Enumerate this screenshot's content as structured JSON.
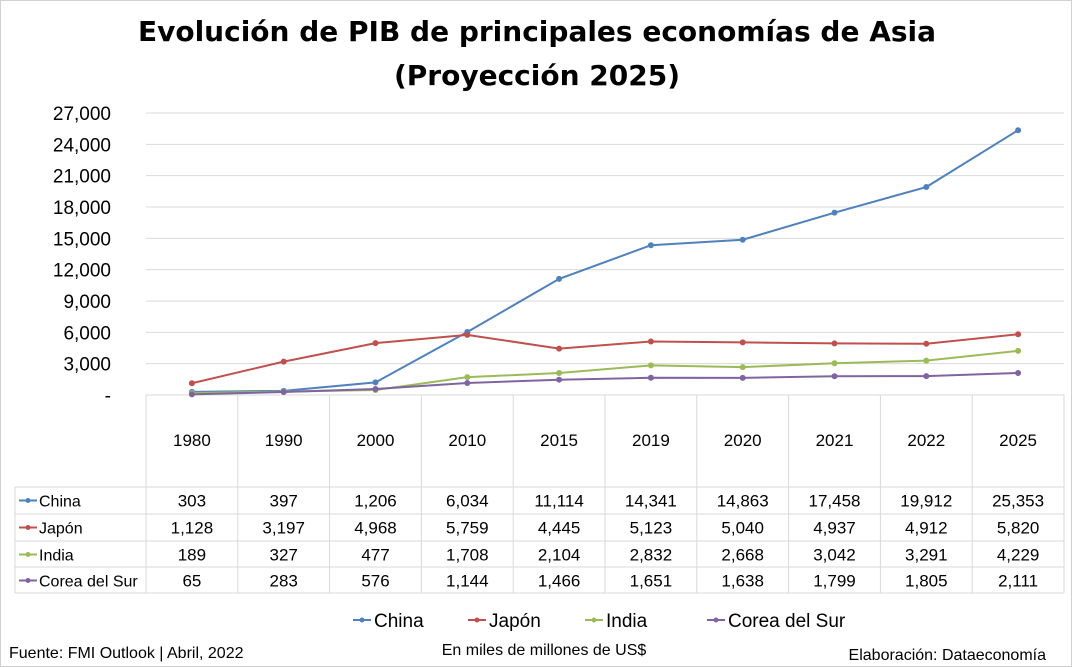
{
  "chart_data": {
    "type": "line",
    "title": "Evolución de PIB de principales economías de Asia",
    "subtitle": "(Proyección 2025)",
    "categories": [
      "1980",
      "1990",
      "2000",
      "2010",
      "2015",
      "2019",
      "2020",
      "2021",
      "2022",
      "2025"
    ],
    "ylim": [
      0,
      27000
    ],
    "yticks": [
      "-",
      "3,000",
      "6,000",
      "9,000",
      "12,000",
      "15,000",
      "18,000",
      "21,000",
      "24,000",
      "27,000"
    ],
    "grid": true,
    "legend_position": "bottom",
    "series": [
      {
        "name": "China",
        "color": "#4F81BD",
        "values": [
          303,
          397,
          1206,
          6034,
          11114,
          14341,
          14863,
          17458,
          19912,
          25353
        ],
        "labels": [
          "303",
          "397",
          "1,206",
          "6,034",
          "11,114",
          "14,341",
          "14,863",
          "17,458",
          "19,912",
          "25,353"
        ]
      },
      {
        "name": "Japón",
        "color": "#C0504D",
        "values": [
          1128,
          3197,
          4968,
          5759,
          4445,
          5123,
          5040,
          4937,
          4912,
          5820
        ],
        "labels": [
          "1,128",
          "3,197",
          "4,968",
          "5,759",
          "4,445",
          "5,123",
          "5,040",
          "4,937",
          "4,912",
          "5,820"
        ]
      },
      {
        "name": "India",
        "color": "#9BBB59",
        "values": [
          189,
          327,
          477,
          1708,
          2104,
          2832,
          2668,
          3042,
          3291,
          4229
        ],
        "labels": [
          "189",
          "327",
          "477",
          "1,708",
          "2,104",
          "2,832",
          "2,668",
          "3,042",
          "3,291",
          "4,229"
        ]
      },
      {
        "name": "Corea del Sur",
        "color": "#8064A2",
        "values": [
          65,
          283,
          576,
          1144,
          1466,
          1651,
          1638,
          1799,
          1805,
          2111
        ],
        "labels": [
          "65",
          "283",
          "576",
          "1,144",
          "1,466",
          "1,651",
          "1,638",
          "1,799",
          "1,805",
          "2,111"
        ]
      }
    ]
  },
  "footer": {
    "source": "Fuente: FMI Outlook | Abril, 2022",
    "unit": "En miles de millones de US$",
    "credit": "Elaboración: Dataeconomía"
  }
}
